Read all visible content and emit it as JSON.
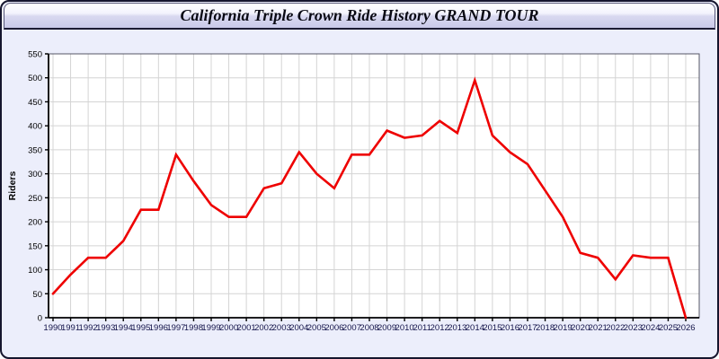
{
  "window": {
    "title": "California Triple Crown Ride History GRAND TOUR"
  },
  "chart_data": {
    "type": "line",
    "title": "California Triple Crown Ride History GRAND TOUR",
    "xlabel": "",
    "ylabel": "Riders",
    "ylim": [
      0,
      550
    ],
    "ytick_step": 50,
    "grid": true,
    "legend_position": "none",
    "line_color": "#ee0000",
    "x": [
      1990,
      1991,
      1992,
      1993,
      1994,
      1995,
      1996,
      1997,
      1998,
      1999,
      2000,
      2001,
      2002,
      2003,
      2004,
      2005,
      2006,
      2007,
      2008,
      2009,
      2010,
      2011,
      2012,
      2013,
      2014,
      2015,
      2016,
      2017,
      2018,
      2019,
      2020,
      2021,
      2022,
      2023,
      2024,
      2025,
      2026
    ],
    "values": [
      50,
      90,
      125,
      125,
      160,
      225,
      225,
      340,
      285,
      235,
      210,
      210,
      270,
      280,
      345,
      300,
      270,
      340,
      340,
      390,
      375,
      380,
      410,
      385,
      495,
      380,
      345,
      320,
      265,
      210,
      135,
      125,
      80,
      130,
      125,
      125,
      0
    ]
  },
  "colors": {
    "frame_background": "#eceefb",
    "frame_border": "#15152e",
    "plot_background": "#ffffff",
    "gridline": "#d4d4d4",
    "axis": "#000000",
    "plot_border": "#555566",
    "x_tick_label": "#14144a",
    "y_tick_label": "#000000",
    "series_line": "#ee0000"
  }
}
